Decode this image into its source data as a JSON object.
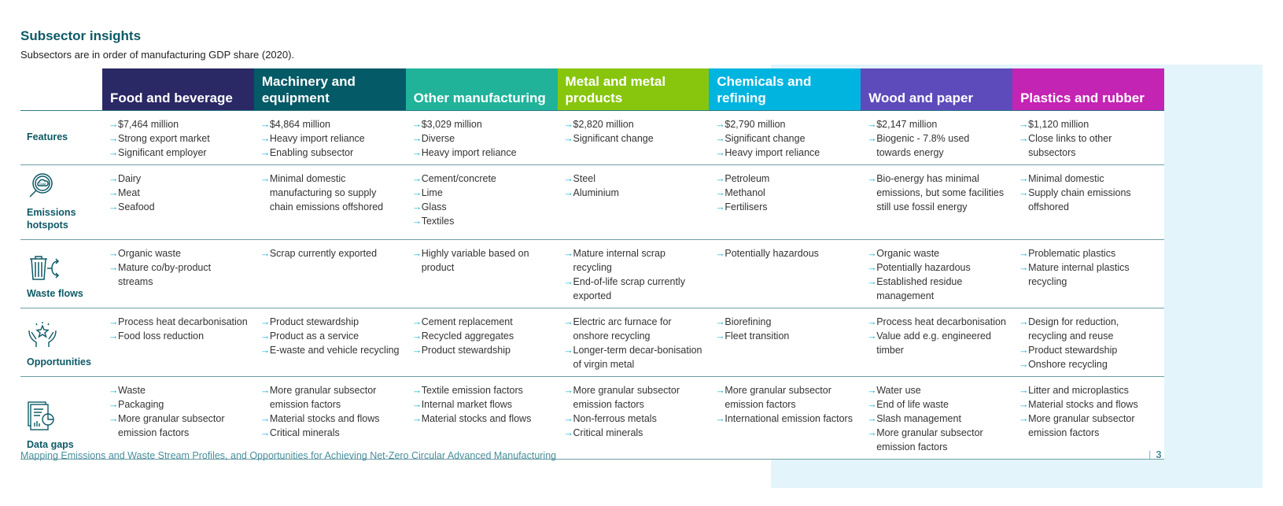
{
  "title": "Subsector insights",
  "subtitle": "Subsectors are in order of manufacturing GDP share (2020).",
  "row_labels": [
    {
      "key": "features",
      "label": "Features",
      "icon": ""
    },
    {
      "key": "emissions",
      "label": "Emissions hotspots",
      "icon": "co2-magnifier-icon"
    },
    {
      "key": "waste",
      "label": "Waste flows",
      "icon": "trash-branch-arrows-icon"
    },
    {
      "key": "opportunities",
      "label": "Opportunities",
      "icon": "hands-star-icon"
    },
    {
      "key": "data_gaps",
      "label": "Data gaps",
      "icon": "report-chart-icon"
    }
  ],
  "columns": [
    {
      "name": "Food and beverage",
      "color": "#2b2866",
      "features": [
        "$7,464 million",
        "Strong export market",
        "Significant employer"
      ],
      "emissions": [
        "Dairy",
        "Meat",
        "Seafood"
      ],
      "waste": [
        "Organic waste",
        "Mature co/by-product streams"
      ],
      "opportunities": [
        "Process heat decarbonisation",
        "Food loss reduction"
      ],
      "data_gaps": [
        "Waste",
        "Packaging",
        "More granular subsector emission factors"
      ]
    },
    {
      "name": "Machinery and equipment",
      "color": "#045a66",
      "features": [
        "$4,864 million",
        "Heavy import reliance",
        "Enabling subsector"
      ],
      "emissions": [
        "Minimal domestic manufacturing so supply chain emissions offshored"
      ],
      "waste": [
        "Scrap currently exported"
      ],
      "opportunities": [
        "Product stewardship",
        "Product as a service",
        "E-waste and vehicle recycling"
      ],
      "data_gaps": [
        "More granular subsector emission factors",
        "Material stocks and flows",
        "Critical minerals"
      ]
    },
    {
      "name": "Other manufacturing",
      "color": "#20b39a",
      "features": [
        "$3,029 million",
        "Diverse",
        "Heavy import reliance"
      ],
      "emissions": [
        "Cement/concrete",
        "Lime",
        "Glass",
        "Textiles"
      ],
      "waste": [
        "Highly variable based on product"
      ],
      "opportunities": [
        "Cement replacement",
        "Recycled aggregates",
        "Product stewardship"
      ],
      "data_gaps": [
        "Textile emission factors",
        "Internal market flows",
        "Material stocks and flows"
      ]
    },
    {
      "name": "Metal and metal products",
      "color": "#88c60d",
      "features": [
        "$2,820 million",
        "Significant change"
      ],
      "emissions": [
        "Steel",
        "Aluminium"
      ],
      "waste": [
        "Mature internal scrap recycling",
        "End-of-life scrap currently exported"
      ],
      "opportunities": [
        "Electric arc furnace for onshore recycling",
        "Longer-term decar-bonisation of virgin metal"
      ],
      "data_gaps": [
        "More granular subsector emission factors",
        "Non-ferrous metals",
        "Critical minerals"
      ]
    },
    {
      "name": "Chemicals and refining",
      "color": "#00b4e0",
      "features": [
        "$2,790 million",
        "Significant change",
        "Heavy import reliance"
      ],
      "emissions": [
        "Petroleum",
        "Methanol",
        "Fertilisers"
      ],
      "waste": [
        "Potentially hazardous"
      ],
      "opportunities": [
        "Biorefining",
        "Fleet transition"
      ],
      "data_gaps": [
        "More granular subsector emission factors",
        "International emission factors"
      ]
    },
    {
      "name": "Wood and paper",
      "color": "#5d4bbb",
      "features": [
        "$2,147 million",
        "Biogenic - 7.8% used towards energy"
      ],
      "emissions": [
        "Bio-energy has minimal emissions, but some facilities still use fossil energy"
      ],
      "waste": [
        "Organic waste",
        "Potentially hazardous",
        "Established residue management"
      ],
      "opportunities": [
        "Process heat decarbonisation",
        "Value add e.g.  engineered timber"
      ],
      "data_gaps": [
        "Water use",
        "End of life waste",
        "Slash management",
        "More granular subsector emission factors"
      ]
    },
    {
      "name": "Plastics and rubber",
      "color": "#c424b4",
      "features": [
        "$1,120 million",
        "Close links to other subsectors"
      ],
      "emissions": [
        "Minimal domestic",
        "Supply chain emissions offshored"
      ],
      "waste": [
        "Problematic plastics",
        "Mature internal plastics recycling"
      ],
      "opportunities": [
        "Design for reduction, recycling and reuse",
        "Product stewardship",
        "Onshore recycling"
      ],
      "data_gaps": [
        "Litter and microplastics",
        "Material stocks and flows",
        "More granular subsector emission factors"
      ]
    }
  ],
  "footer": "Mapping Emissions and Waste Stream Profiles, and Opportunities for Achieving Net-Zero Circular Advanced Manufacturing",
  "page_number": "3",
  "arrow": "→"
}
